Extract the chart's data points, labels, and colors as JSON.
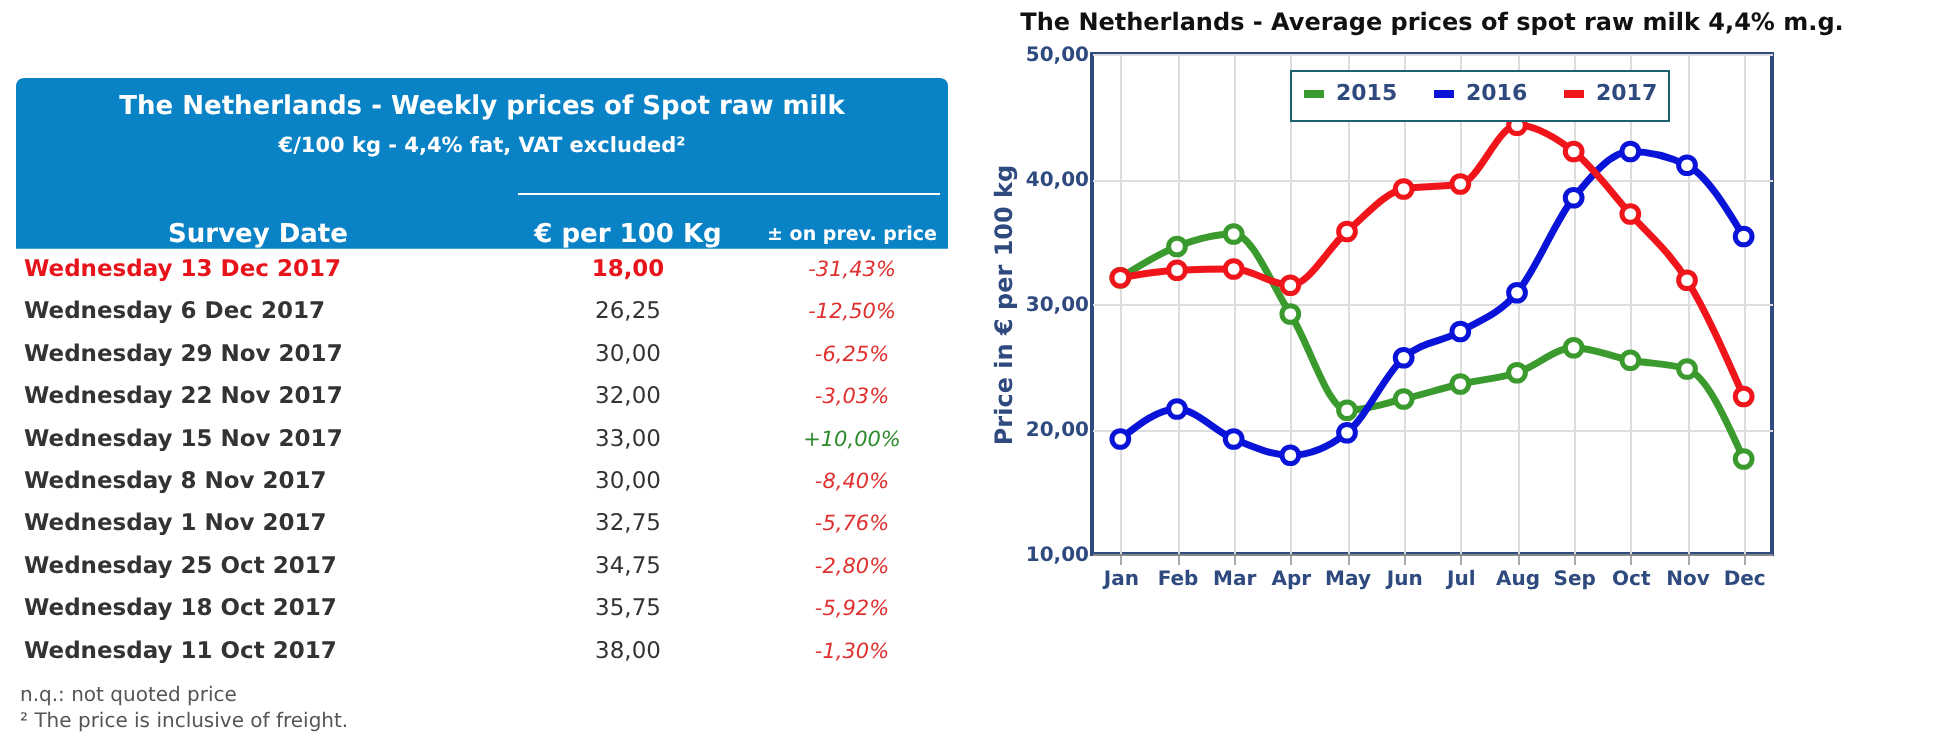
{
  "chart_data": [
    {
      "type": "other",
      "title": "The Netherlands - Weekly prices of Spot raw milk",
      "subtitle": "€/100 kg - 4,4% fat, VAT excluded²",
      "categories": [
        "Wednesday 13 Dec 2017",
        "Wednesday 6 Dec 2017",
        "Wednesday 29 Nov 2017",
        "Wednesday 22 Nov 2017",
        "Wednesday 15 Nov 2017",
        "Wednesday 8 Nov 2017",
        "Wednesday 1 Nov 2017",
        "Wednesday 25 Oct 2017",
        "Wednesday 18 Oct 2017",
        "Wednesday 11 Oct 2017"
      ],
      "values": [
        18.0,
        26.25,
        30.0,
        32.0,
        33.0,
        30.0,
        32.75,
        34.75,
        35.75,
        38.0
      ],
      "value_labels": [
        "18,00",
        "26,25",
        "30,00",
        "32,00",
        "33,00",
        "30,00",
        "32,75",
        "34,75",
        "35,75",
        "38,00"
      ],
      "colors": [
        "#e8141b",
        "#333333",
        "#333333",
        "#333333",
        "#333333",
        "#333333",
        "#333333",
        "#333333",
        "#333333",
        "#333333"
      ],
      "xlabel": "Survey Date",
      "ylabel": "€ per 100 Kg",
      "legend_title": "± on prev. price",
      "annotations": [
        "-31,43%",
        "-12,50%",
        "-6,25%",
        "-3,03%",
        "+10,00%",
        "-8,40%",
        "-5,76%",
        "-2,80%",
        "-5,92%",
        "-1,30%",
        "n.q.: not quoted price",
        "² The price is inclusive of freight."
      ]
    },
    {
      "type": "line",
      "title": "The Netherlands - Average prices of spot raw milk 4,4% m.g.",
      "ylabel": "Price in € per 100 kg",
      "categories": [
        "Jan",
        "Feb",
        "Mar",
        "Apr",
        "May",
        "Jun",
        "Jul",
        "Aug",
        "Sep",
        "Oct",
        "Nov",
        "Dec"
      ],
      "series": [
        {
          "name": "2015",
          "color": "#3a9a2e",
          "values": [
            32.1,
            34.6,
            35.6,
            29.2,
            21.5,
            22.4,
            23.6,
            24.5,
            26.5,
            25.5,
            24.8,
            17.6
          ]
        },
        {
          "name": "2016",
          "color": "#0a14d8",
          "values": [
            19.2,
            21.6,
            19.2,
            17.9,
            19.7,
            25.7,
            27.8,
            30.9,
            38.5,
            42.2,
            41.1,
            35.4
          ]
        },
        {
          "name": "2017",
          "color": "#f0141b",
          "values": [
            32.1,
            32.7,
            32.8,
            31.5,
            35.8,
            39.2,
            39.6,
            44.3,
            42.2,
            37.2,
            31.9,
            22.6
          ]
        }
      ],
      "ylim": [
        10,
        50
      ],
      "yticks": [
        {
          "value": 10,
          "label": "10,00"
        },
        {
          "value": 20,
          "label": "20,00"
        },
        {
          "value": 30,
          "label": "30,00"
        },
        {
          "value": 40,
          "label": "40,00"
        },
        {
          "value": 50,
          "label": "50,00"
        }
      ],
      "grid": true,
      "legend": "top",
      "marker": "circle",
      "line_style": "solid"
    }
  ]
}
